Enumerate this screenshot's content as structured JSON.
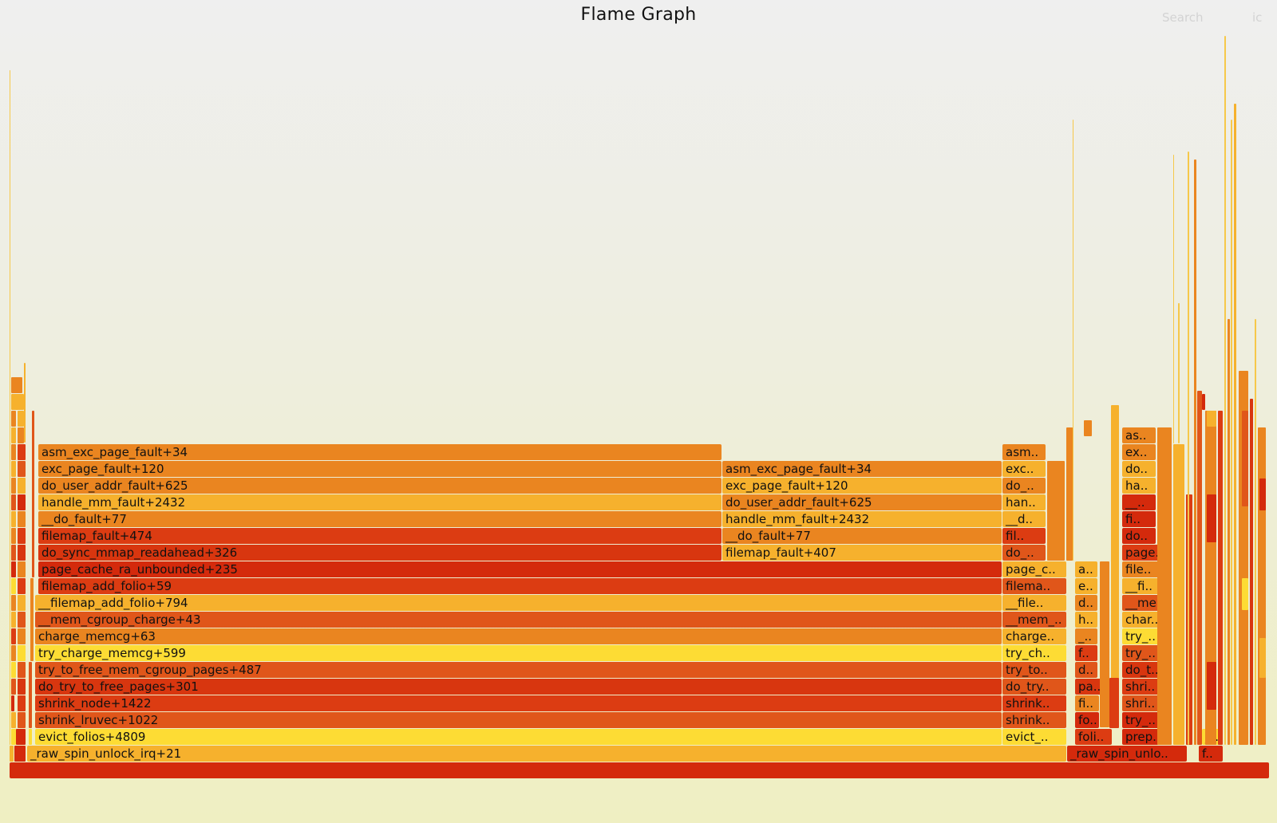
{
  "header": {
    "title": "Flame Graph",
    "search_label": "Search",
    "ic_label": "ic"
  },
  "palette": {
    "yellow": "#fddc34",
    "light_orange": "#f6b12d",
    "orange": "#ea8520",
    "dark_orange": "#e0561a",
    "red": "#d42a0c",
    "deep_red": "#cf1d09"
  },
  "frames": [
    {
      "label": "",
      "color": "#d42a0c"
    },
    {
      "label": "_raw_spin_unlock_irq+21",
      "color": "#f6b12d"
    },
    {
      "label": "evict_folios+4809",
      "color": "#fddc34"
    },
    {
      "label": "shrink_lruvec+1022",
      "color": "#e0561a"
    },
    {
      "label": "shrink_node+1422",
      "color": "#dc3c12"
    },
    {
      "label": "do_try_to_free_pages+301",
      "color": "#d8360f"
    },
    {
      "label": "try_to_free_mem_cgroup_pages+487",
      "color": "#e0561a"
    },
    {
      "label": "try_charge_memcg+599",
      "color": "#fddc34"
    },
    {
      "label": "charge_memcg+63",
      "color": "#ea8520"
    },
    {
      "label": "__mem_cgroup_charge+43",
      "color": "#e0561a"
    },
    {
      "label": "__filemap_add_folio+794",
      "color": "#f6b12d"
    },
    {
      "label": "filemap_add_folio+59",
      "color": "#dc3c12"
    },
    {
      "label": "page_cache_ra_unbounded+235",
      "color": "#d42a0c"
    },
    {
      "label": "do_sync_mmap_readahead+326",
      "color": "#d8360f"
    },
    {
      "label": "filemap_fault+474",
      "color": "#dc3c12"
    },
    {
      "label": "__do_fault+77",
      "color": "#ea8520"
    },
    {
      "label": "handle_mm_fault+2432",
      "color": "#f6b12d"
    },
    {
      "label": "do_user_addr_fault+625",
      "color": "#ea8520"
    },
    {
      "label": "exc_page_fault+120",
      "color": "#ea8520"
    },
    {
      "label": "asm_exc_page_fault+34",
      "color": "#ea8520"
    },
    {
      "label": "filemap_fault+407",
      "color": "#f6b12d"
    },
    {
      "label": "__do_fault+77",
      "color": "#ea8520"
    },
    {
      "label": "handle_mm_fault+2432",
      "color": "#f6b12d"
    },
    {
      "label": "do_user_addr_fault+625",
      "color": "#ea8520"
    },
    {
      "label": "exc_page_fault+120",
      "color": "#f6b12d"
    },
    {
      "label": "asm_exc_page_fault+34",
      "color": "#ea8520"
    },
    {
      "label": "evict_..",
      "color": "#fddc34"
    },
    {
      "label": "shrink..",
      "color": "#e0561a"
    },
    {
      "label": "shrink..",
      "color": "#dc3c12"
    },
    {
      "label": "do_try..",
      "color": "#e0561a"
    },
    {
      "label": "try_to..",
      "color": "#e0561a"
    },
    {
      "label": "try_ch..",
      "color": "#fddc34"
    },
    {
      "label": "charge..",
      "color": "#f6b12d"
    },
    {
      "label": "__mem_..",
      "color": "#e0561a"
    },
    {
      "label": "__file..",
      "color": "#f6b12d"
    },
    {
      "label": "filema..",
      "color": "#e0561a"
    },
    {
      "label": "page_c..",
      "color": "#f6b12d"
    },
    {
      "label": "do_..",
      "color": "#e0561a"
    },
    {
      "label": "fil..",
      "color": "#dc3c12"
    },
    {
      "label": "__d..",
      "color": "#f6b12d"
    },
    {
      "label": "han..",
      "color": "#f6b12d"
    },
    {
      "label": "do_..",
      "color": "#ea8520"
    },
    {
      "label": "exc..",
      "color": "#f6b12d"
    },
    {
      "label": "asm..",
      "color": "#ea8520"
    },
    {
      "label": "_raw_spin_unlo..",
      "color": "#d42a0c"
    },
    {
      "label": "foli..",
      "color": "#dc3c12"
    },
    {
      "label": "fo..",
      "color": "#d42a0c"
    },
    {
      "label": "fi..",
      "color": "#ea8520"
    },
    {
      "label": "pa..",
      "color": "#d8360f"
    },
    {
      "label": "d..",
      "color": "#e0561a"
    },
    {
      "label": "f..",
      "color": "#dc3c12"
    },
    {
      "label": "_..",
      "color": "#ea8520"
    },
    {
      "label": "h..",
      "color": "#f6b12d"
    },
    {
      "label": "d..",
      "color": "#ea8520"
    },
    {
      "label": "e..",
      "color": "#f6b12d"
    },
    {
      "label": "a..",
      "color": "#f6b12d"
    },
    {
      "label": "prep..",
      "color": "#d42a0c"
    },
    {
      "label": "try_..",
      "color": "#d42a0c"
    },
    {
      "label": "shri..",
      "color": "#e0561a"
    },
    {
      "label": "shri..",
      "color": "#dc3c12"
    },
    {
      "label": "do_t..",
      "color": "#d8360f"
    },
    {
      "label": "try_..",
      "color": "#e0561a"
    },
    {
      "label": "try_..",
      "color": "#fddc34"
    },
    {
      "label": "char..",
      "color": "#f6b12d"
    },
    {
      "label": "__me..",
      "color": "#e0561a"
    },
    {
      "label": "__fi..",
      "color": "#f6b12d"
    },
    {
      "label": "file..",
      "color": "#ea8520"
    },
    {
      "label": "page..",
      "color": "#dc3c12"
    },
    {
      "label": "do..",
      "color": "#d42a0c"
    },
    {
      "label": "fi..",
      "color": "#d42a0c"
    },
    {
      "label": "__..",
      "color": "#d42a0c"
    },
    {
      "label": "ha..",
      "color": "#f6b12d"
    },
    {
      "label": "do..",
      "color": "#f6b12d"
    },
    {
      "label": "ex..",
      "color": "#ea8520"
    },
    {
      "label": "as..",
      "color": "#ea8520"
    },
    {
      "label": "f..",
      "color": "#d42a0c"
    },
    {
      "label": "_..",
      "color": "#fddc34"
    }
  ]
}
